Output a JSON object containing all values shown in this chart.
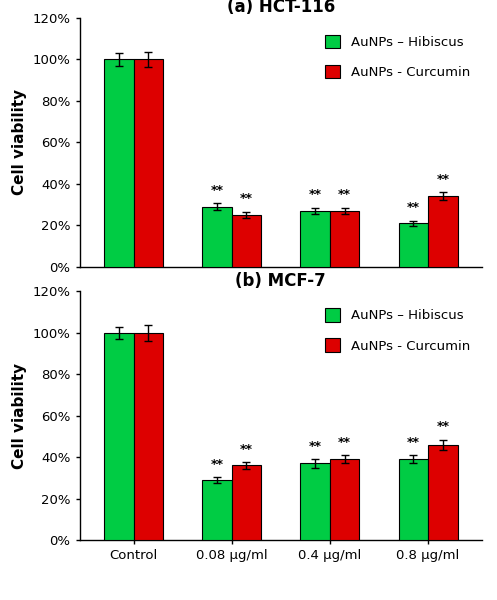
{
  "hct116": {
    "title": "(a) HCT-116",
    "categories": [
      "Control",
      "0.08 μg/ml",
      "0.4 μg/ml",
      "0.8 μg/ml"
    ],
    "green_values": [
      100,
      29,
      27,
      21
    ],
    "red_values": [
      100,
      25,
      27,
      34
    ],
    "green_errors": [
      3.0,
      1.5,
      1.5,
      1.2
    ],
    "red_errors": [
      3.5,
      1.5,
      1.5,
      2.0
    ],
    "sig_green": [
      false,
      true,
      true,
      true
    ],
    "sig_red": [
      false,
      true,
      true,
      true
    ]
  },
  "mcf7": {
    "title": "(b) MCF-7",
    "categories": [
      "Control",
      "0.08 μg/ml",
      "0.4 μg/ml",
      "0.8 μg/ml"
    ],
    "green_values": [
      100,
      29,
      37,
      39
    ],
    "red_values": [
      100,
      36,
      39,
      46
    ],
    "green_errors": [
      3.0,
      1.5,
      2.0,
      2.0
    ],
    "red_errors": [
      4.0,
      1.5,
      2.0,
      2.5
    ],
    "sig_green": [
      false,
      true,
      true,
      true
    ],
    "sig_red": [
      false,
      true,
      true,
      true
    ]
  },
  "green_color": "#00CC44",
  "red_color": "#DD0000",
  "bar_width": 0.3,
  "ylim": [
    0,
    120
  ],
  "yticks": [
    0,
    20,
    40,
    60,
    80,
    100,
    120
  ],
  "ytick_labels": [
    "0%",
    "20%",
    "40%",
    "60%",
    "80%",
    "100%",
    "120%"
  ],
  "ylabel": "Cell viability",
  "legend_green": "AuNPs – Hibiscus",
  "legend_red": "AuNPs - Curcumin",
  "sig_label": "**",
  "title_fontsize": 12,
  "label_fontsize": 11,
  "tick_fontsize": 9.5,
  "legend_fontsize": 9.5,
  "sig_fontsize": 9
}
